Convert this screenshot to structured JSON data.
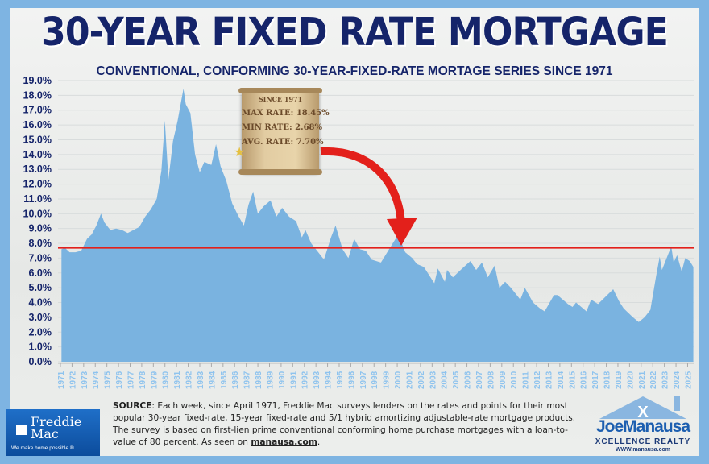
{
  "header": {
    "title": "30-YEAR FIXED RATE MORTGAGE",
    "subtitle": "CONVENTIONAL, CONFORMING 30-YEAR-FIXED-RATE MORTAGE SERIES SINCE 1971"
  },
  "scroll": {
    "since": "SINCE 1971",
    "max_label": "MAX RATE:",
    "max_value": "18.45%",
    "min_label": "MIN RATE:",
    "min_value": "2.68%",
    "avg_label": "AVG. RATE:",
    "avg_value": "7.70%"
  },
  "chart_data": {
    "type": "area",
    "title": "30-YEAR FIXED RATE MORTGAGE",
    "subtitle": "CONVENTIONAL, CONFORMING 30-YEAR-FIXED-RATE MORTAGE SERIES SINCE 1971",
    "xlabel": "",
    "ylabel": "",
    "ylim": [
      0,
      19
    ],
    "yticks": [
      "0.0%",
      "1.0%",
      "2.0%",
      "3.0%",
      "4.0%",
      "5.0%",
      "6.0%",
      "7.0%",
      "8.0%",
      "9.0%",
      "10.0%",
      "11.0%",
      "12.0%",
      "13.0%",
      "14.0%",
      "15.0%",
      "16.0%",
      "17.0%",
      "18.0%",
      "19.0%"
    ],
    "xticks": [
      "1971",
      "1972",
      "1973",
      "1974",
      "1975",
      "1976",
      "1977",
      "1978",
      "1979",
      "1980",
      "1981",
      "1982",
      "1983",
      "1984",
      "1985",
      "1986",
      "1987",
      "1988",
      "1989",
      "1990",
      "1991",
      "1992",
      "1993",
      "1994",
      "1995",
      "1996",
      "1997",
      "1998",
      "1999",
      "2000",
      "2001",
      "2002",
      "2003",
      "2004",
      "2005",
      "2006",
      "2007",
      "2008",
      "2009",
      "2010",
      "2011",
      "2012",
      "2013",
      "2014",
      "2015",
      "2016",
      "2017",
      "2018",
      "2019",
      "2020",
      "2021",
      "2022",
      "2023",
      "2024",
      "2025"
    ],
    "grid": true,
    "average_line": 7.7,
    "area_color": "#7ab3e0",
    "average_line_color": "#e3201b",
    "points": [
      [
        1971.3,
        7.6
      ],
      [
        1971.6,
        7.7
      ],
      [
        1972,
        7.4
      ],
      [
        1972.5,
        7.4
      ],
      [
        1973,
        7.5
      ],
      [
        1973.5,
        8.3
      ],
      [
        1973.9,
        8.6
      ],
      [
        1974.3,
        9.2
      ],
      [
        1974.7,
        10.0
      ],
      [
        1975,
        9.4
      ],
      [
        1975.5,
        8.9
      ],
      [
        1976,
        9.0
      ],
      [
        1976.5,
        8.9
      ],
      [
        1977,
        8.7
      ],
      [
        1977.5,
        8.9
      ],
      [
        1978,
        9.1
      ],
      [
        1978.5,
        9.8
      ],
      [
        1979,
        10.3
      ],
      [
        1979.5,
        11.0
      ],
      [
        1979.9,
        12.9
      ],
      [
        1980.2,
        16.3
      ],
      [
        1980.5,
        12.3
      ],
      [
        1980.9,
        14.9
      ],
      [
        1981.3,
        16.3
      ],
      [
        1981.8,
        18.45
      ],
      [
        1982,
        17.4
      ],
      [
        1982.4,
        16.8
      ],
      [
        1982.8,
        14.0
      ],
      [
        1983.2,
        12.8
      ],
      [
        1983.6,
        13.5
      ],
      [
        1984.2,
        13.3
      ],
      [
        1984.6,
        14.7
      ],
      [
        1985,
        13.2
      ],
      [
        1985.5,
        12.2
      ],
      [
        1986,
        10.7
      ],
      [
        1986.5,
        9.9
      ],
      [
        1987,
        9.2
      ],
      [
        1987.4,
        10.6
      ],
      [
        1987.8,
        11.5
      ],
      [
        1988.2,
        10.0
      ],
      [
        1988.7,
        10.5
      ],
      [
        1989.3,
        10.9
      ],
      [
        1989.8,
        9.8
      ],
      [
        1990.3,
        10.4
      ],
      [
        1990.9,
        9.8
      ],
      [
        1991.5,
        9.5
      ],
      [
        1992,
        8.4
      ],
      [
        1992.3,
        8.9
      ],
      [
        1992.8,
        8.0
      ],
      [
        1993.5,
        7.3
      ],
      [
        1993.9,
        6.9
      ],
      [
        1994.5,
        8.4
      ],
      [
        1994.9,
        9.2
      ],
      [
        1995.5,
        7.6
      ],
      [
        1996,
        7.0
      ],
      [
        1996.5,
        8.3
      ],
      [
        1997,
        7.6
      ],
      [
        1997.5,
        7.5
      ],
      [
        1998,
        6.9
      ],
      [
        1998.8,
        6.7
      ],
      [
        1999.5,
        7.6
      ],
      [
        2000.3,
        8.6
      ],
      [
        2000.9,
        7.4
      ],
      [
        2001.5,
        7.0
      ],
      [
        2001.9,
        6.6
      ],
      [
        2002.5,
        6.4
      ],
      [
        2003.4,
        5.3
      ],
      [
        2003.7,
        6.3
      ],
      [
        2004.3,
        5.4
      ],
      [
        2004.5,
        6.2
      ],
      [
        2005,
        5.7
      ],
      [
        2005.8,
        6.3
      ],
      [
        2006.5,
        6.8
      ],
      [
        2007,
        6.2
      ],
      [
        2007.5,
        6.7
      ],
      [
        2008,
        5.7
      ],
      [
        2008.6,
        6.5
      ],
      [
        2009,
        5.0
      ],
      [
        2009.5,
        5.4
      ],
      [
        2010,
        5.0
      ],
      [
        2010.8,
        4.2
      ],
      [
        2011.2,
        5.0
      ],
      [
        2011.9,
        4.0
      ],
      [
        2012.5,
        3.6
      ],
      [
        2012.9,
        3.4
      ],
      [
        2013.7,
        4.5
      ],
      [
        2014,
        4.5
      ],
      [
        2014.9,
        3.9
      ],
      [
        2015.3,
        3.7
      ],
      [
        2015.6,
        4.0
      ],
      [
        2016.5,
        3.4
      ],
      [
        2016.9,
        4.2
      ],
      [
        2017.5,
        3.9
      ],
      [
        2018.8,
        4.9
      ],
      [
        2019.3,
        4.1
      ],
      [
        2019.7,
        3.6
      ],
      [
        2020.5,
        3.0
      ],
      [
        2021,
        2.68
      ],
      [
        2021.5,
        3.0
      ],
      [
        2022,
        3.5
      ],
      [
        2022.5,
        5.8
      ],
      [
        2022.8,
        7.1
      ],
      [
        2023,
        6.2
      ],
      [
        2023.8,
        7.8
      ],
      [
        2024,
        6.7
      ],
      [
        2024.3,
        7.2
      ],
      [
        2024.7,
        6.1
      ],
      [
        2025,
        7.0
      ],
      [
        2025.4,
        6.8
      ],
      [
        2025.7,
        6.4
      ]
    ]
  },
  "footer": {
    "source_label": "SOURCE",
    "source_text": ": Each week, since April 1971, Freddie Mac surveys lenders on the rates and points for their most popular 30-year fixed-rate, 15-year fixed-rate and 5/1 hybrid amortizing adjustable-rate mortgage products. The survey is based on first-lien prime conventional conforming home purchase mortgages with a loan-to-value of 80 percent. As seen on ",
    "source_link": "manausa.com",
    "source_end": ".",
    "freddie_name": "Freddie Mac",
    "freddie_tagline": "We make home possible ®",
    "joe_name": "JoeManausa",
    "joe_sub": "XCELLENCE REALTY",
    "joe_url": "WWW.manausa.com"
  }
}
